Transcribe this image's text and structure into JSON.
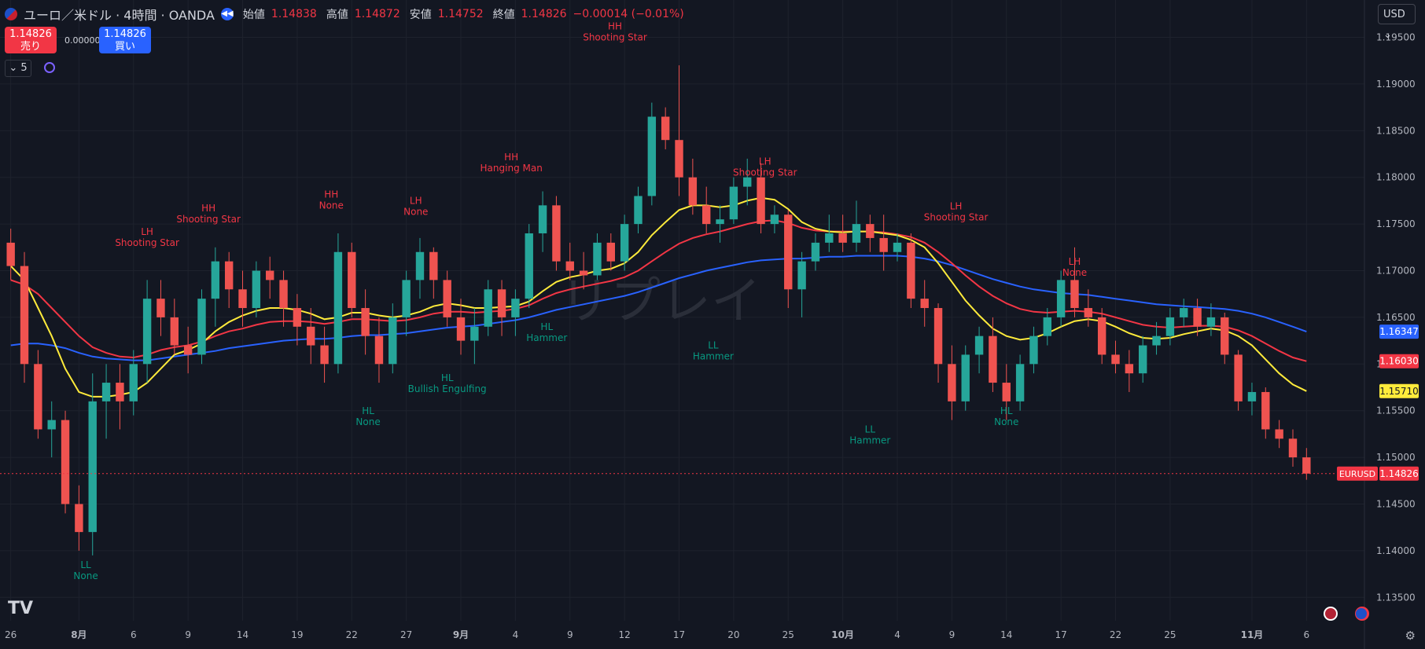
{
  "header": {
    "symbol_title": "ユーロ／米ドル · 4時間 · OANDA",
    "open_label": "始値",
    "open": "1.14838",
    "high_label": "高値",
    "high": "1.14872",
    "low_label": "安値",
    "low": "1.14752",
    "close_label": "終値",
    "close": "1.14826",
    "change": "−0.00014 (−0.01%)"
  },
  "trade": {
    "sell_price": "1.14826",
    "sell_label": "売り",
    "buy_price": "1.14826",
    "buy_label": "買い",
    "spread": "0.00000"
  },
  "indicators_toggle": "5",
  "currency_button": "USD",
  "watermark": "リプレイ",
  "colors": {
    "background": "#131722",
    "grid": "#1e222d",
    "up": "#26a69a",
    "down": "#ef5350",
    "ma_fast": "#ffeb3b",
    "ma_mid": "#f23645",
    "ma_slow": "#2962ff",
    "label_up": "#f23645",
    "label_down": "#089981"
  },
  "chart_data": {
    "type": "candlestick",
    "symbol": "EURUSD",
    "timeframe": "4時間",
    "ylim": [
      1.1325,
      1.199
    ],
    "yticks": [
      "1.19500",
      "1.19000",
      "1.18500",
      "1.18000",
      "1.17500",
      "1.17000",
      "1.16500",
      "1.16000",
      "1.15500",
      "1.15000",
      "1.14500",
      "1.14000",
      "1.13500"
    ],
    "xticks": [
      {
        "label": "26",
        "t": 0.5
      },
      {
        "label": "8月",
        "t": 5.5,
        "bold": true
      },
      {
        "label": "6",
        "t": 9.5
      },
      {
        "label": "9",
        "t": 13.5
      },
      {
        "label": "14",
        "t": 17.5
      },
      {
        "label": "19",
        "t": 21.5
      },
      {
        "label": "22",
        "t": 25.5
      },
      {
        "label": "27",
        "t": 29.5
      },
      {
        "label": "9月",
        "t": 33.5,
        "bold": true
      },
      {
        "label": "4",
        "t": 37.5
      },
      {
        "label": "9",
        "t": 41.5
      },
      {
        "label": "12",
        "t": 45.5
      },
      {
        "label": "17",
        "t": 49.5
      },
      {
        "label": "20",
        "t": 53.5
      },
      {
        "label": "25",
        "t": 57.5
      },
      {
        "label": "10月",
        "t": 61.5,
        "bold": true
      },
      {
        "label": "4",
        "t": 65.5
      },
      {
        "label": "9",
        "t": 69.5
      },
      {
        "label": "14",
        "t": 73.5
      },
      {
        "label": "17",
        "t": 77.5
      },
      {
        "label": "22",
        "t": 81.5
      },
      {
        "label": "25",
        "t": 85.5
      },
      {
        "label": "11月",
        "t": 91.5,
        "bold": true
      },
      {
        "label": "6",
        "t": 95.5
      }
    ],
    "candles": [
      [
        1.173,
        1.1745,
        1.169,
        1.1705
      ],
      [
        1.1705,
        1.172,
        1.158,
        1.16
      ],
      [
        1.16,
        1.1615,
        1.152,
        1.153
      ],
      [
        1.153,
        1.156,
        1.15,
        1.154
      ],
      [
        1.154,
        1.155,
        1.144,
        1.145
      ],
      [
        1.145,
        1.147,
        1.14,
        1.142
      ],
      [
        1.142,
        1.159,
        1.1395,
        1.156
      ],
      [
        1.156,
        1.16,
        1.152,
        1.158
      ],
      [
        1.158,
        1.16,
        1.153,
        1.156
      ],
      [
        1.156,
        1.1615,
        1.1545,
        1.16
      ],
      [
        1.16,
        1.169,
        1.158,
        1.167
      ],
      [
        1.167,
        1.169,
        1.163,
        1.165
      ],
      [
        1.165,
        1.167,
        1.161,
        1.162
      ],
      [
        1.162,
        1.164,
        1.159,
        1.161
      ],
      [
        1.161,
        1.168,
        1.16,
        1.167
      ],
      [
        1.167,
        1.1725,
        1.164,
        1.171
      ],
      [
        1.171,
        1.172,
        1.166,
        1.168
      ],
      [
        1.168,
        1.17,
        1.164,
        1.166
      ],
      [
        1.166,
        1.171,
        1.165,
        1.17
      ],
      [
        1.17,
        1.1715,
        1.167,
        1.169
      ],
      [
        1.169,
        1.17,
        1.164,
        1.166
      ],
      [
        1.166,
        1.1675,
        1.162,
        1.164
      ],
      [
        1.164,
        1.166,
        1.16,
        1.162
      ],
      [
        1.162,
        1.164,
        1.158,
        1.16
      ],
      [
        1.16,
        1.174,
        1.159,
        1.172
      ],
      [
        1.172,
        1.173,
        1.165,
        1.166
      ],
      [
        1.166,
        1.168,
        1.161,
        1.163
      ],
      [
        1.163,
        1.165,
        1.158,
        1.16
      ],
      [
        1.16,
        1.1665,
        1.159,
        1.165
      ],
      [
        1.165,
        1.17,
        1.163,
        1.169
      ],
      [
        1.169,
        1.1735,
        1.167,
        1.172
      ],
      [
        1.172,
        1.1725,
        1.167,
        1.169
      ],
      [
        1.169,
        1.17,
        1.164,
        1.165
      ],
      [
        1.165,
        1.167,
        1.161,
        1.1625
      ],
      [
        1.1625,
        1.166,
        1.16,
        1.164
      ],
      [
        1.164,
        1.169,
        1.163,
        1.168
      ],
      [
        1.168,
        1.169,
        1.163,
        1.165
      ],
      [
        1.165,
        1.168,
        1.163,
        1.167
      ],
      [
        1.167,
        1.175,
        1.166,
        1.174
      ],
      [
        1.174,
        1.1785,
        1.172,
        1.177
      ],
      [
        1.177,
        1.178,
        1.17,
        1.171
      ],
      [
        1.171,
        1.173,
        1.169,
        1.17
      ],
      [
        1.17,
        1.172,
        1.168,
        1.1695
      ],
      [
        1.1695,
        1.174,
        1.169,
        1.173
      ],
      [
        1.173,
        1.174,
        1.17,
        1.171
      ],
      [
        1.171,
        1.176,
        1.17,
        1.175
      ],
      [
        1.175,
        1.179,
        1.174,
        1.178
      ],
      [
        1.178,
        1.188,
        1.177,
        1.1865
      ],
      [
        1.1865,
        1.1875,
        1.183,
        1.184
      ],
      [
        1.184,
        1.192,
        1.178,
        1.18
      ],
      [
        1.18,
        1.182,
        1.176,
        1.177
      ],
      [
        1.177,
        1.179,
        1.174,
        1.175
      ],
      [
        1.175,
        1.177,
        1.173,
        1.1755
      ],
      [
        1.1755,
        1.18,
        1.175,
        1.179
      ],
      [
        1.179,
        1.182,
        1.177,
        1.18
      ],
      [
        1.18,
        1.1815,
        1.174,
        1.175
      ],
      [
        1.175,
        1.177,
        1.174,
        1.176
      ],
      [
        1.176,
        1.1765,
        1.166,
        1.168
      ],
      [
        1.168,
        1.172,
        1.165,
        1.171
      ],
      [
        1.171,
        1.174,
        1.17,
        1.173
      ],
      [
        1.173,
        1.176,
        1.172,
        1.174
      ],
      [
        1.174,
        1.176,
        1.172,
        1.173
      ],
      [
        1.173,
        1.1775,
        1.172,
        1.175
      ],
      [
        1.175,
        1.176,
        1.172,
        1.1735
      ],
      [
        1.1735,
        1.176,
        1.17,
        1.172
      ],
      [
        1.172,
        1.174,
        1.171,
        1.173
      ],
      [
        1.173,
        1.174,
        1.166,
        1.167
      ],
      [
        1.167,
        1.169,
        1.164,
        1.166
      ],
      [
        1.166,
        1.1665,
        1.158,
        1.16
      ],
      [
        1.16,
        1.162,
        1.154,
        1.156
      ],
      [
        1.156,
        1.162,
        1.155,
        1.161
      ],
      [
        1.161,
        1.164,
        1.159,
        1.163
      ],
      [
        1.163,
        1.165,
        1.157,
        1.158
      ],
      [
        1.158,
        1.16,
        1.154,
        1.156
      ],
      [
        1.156,
        1.161,
        1.155,
        1.16
      ],
      [
        1.16,
        1.164,
        1.159,
        1.163
      ],
      [
        1.163,
        1.166,
        1.162,
        1.165
      ],
      [
        1.165,
        1.17,
        1.164,
        1.169
      ],
      [
        1.169,
        1.1725,
        1.165,
        1.166
      ],
      [
        1.166,
        1.168,
        1.164,
        1.165
      ],
      [
        1.165,
        1.166,
        1.16,
        1.161
      ],
      [
        1.161,
        1.1625,
        1.159,
        1.16
      ],
      [
        1.16,
        1.1615,
        1.157,
        1.159
      ],
      [
        1.159,
        1.163,
        1.158,
        1.162
      ],
      [
        1.162,
        1.1645,
        1.161,
        1.163
      ],
      [
        1.163,
        1.166,
        1.162,
        1.165
      ],
      [
        1.165,
        1.167,
        1.164,
        1.166
      ],
      [
        1.166,
        1.167,
        1.163,
        1.164
      ],
      [
        1.164,
        1.1665,
        1.163,
        1.165
      ],
      [
        1.165,
        1.1655,
        1.16,
        1.161
      ],
      [
        1.161,
        1.1615,
        1.155,
        1.156
      ],
      [
        1.156,
        1.158,
        1.1545,
        1.157
      ],
      [
        1.157,
        1.1575,
        1.152,
        1.153
      ],
      [
        1.153,
        1.154,
        1.151,
        1.152
      ],
      [
        1.152,
        1.153,
        1.149,
        1.15
      ],
      [
        1.15,
        1.151,
        1.1476,
        1.14826
      ]
    ],
    "ma_fast_values": [
      1.1705,
      1.169,
      1.166,
      1.163,
      1.1595,
      1.157,
      1.1565,
      1.1565,
      1.1567,
      1.157,
      1.158,
      1.1595,
      1.161,
      1.1615,
      1.1622,
      1.1635,
      1.1645,
      1.1652,
      1.1657,
      1.166,
      1.166,
      1.1658,
      1.1654,
      1.1648,
      1.165,
      1.1655,
      1.1655,
      1.1652,
      1.165,
      1.1652,
      1.1656,
      1.1662,
      1.1665,
      1.1663,
      1.166,
      1.166,
      1.1661,
      1.1662,
      1.1667,
      1.1678,
      1.1688,
      1.1693,
      1.1696,
      1.17,
      1.1702,
      1.1708,
      1.172,
      1.1738,
      1.1752,
      1.1765,
      1.177,
      1.177,
      1.1768,
      1.177,
      1.1775,
      1.1778,
      1.1776,
      1.1766,
      1.1752,
      1.1745,
      1.1742,
      1.1741,
      1.1742,
      1.1742,
      1.174,
      1.1738,
      1.1733,
      1.1725,
      1.1708,
      1.1688,
      1.1668,
      1.1652,
      1.1638,
      1.163,
      1.1626,
      1.1628,
      1.1633,
      1.164,
      1.1646,
      1.1648,
      1.1646,
      1.164,
      1.1633,
      1.1628,
      1.1627,
      1.1628,
      1.1632,
      1.1635,
      1.1638,
      1.1636,
      1.163,
      1.162,
      1.1605,
      1.159,
      1.1578,
      1.1571
    ],
    "ma_mid_values": [
      1.169,
      1.1685,
      1.1675,
      1.166,
      1.1645,
      1.163,
      1.1618,
      1.1612,
      1.1608,
      1.1607,
      1.161,
      1.1615,
      1.1618,
      1.162,
      1.1624,
      1.163,
      1.1635,
      1.1638,
      1.1642,
      1.1645,
      1.1646,
      1.1646,
      1.1645,
      1.1643,
      1.1645,
      1.1648,
      1.1648,
      1.1647,
      1.1646,
      1.1647,
      1.165,
      1.1654,
      1.1656,
      1.1656,
      1.1655,
      1.1656,
      1.1657,
      1.1659,
      1.1663,
      1.167,
      1.1676,
      1.168,
      1.1683,
      1.1686,
      1.1689,
      1.1693,
      1.17,
      1.171,
      1.172,
      1.1729,
      1.1735,
      1.1739,
      1.1742,
      1.1746,
      1.175,
      1.1753,
      1.1754,
      1.1751,
      1.1746,
      1.1743,
      1.1742,
      1.1742,
      1.1742,
      1.1742,
      1.1741,
      1.1739,
      1.1736,
      1.173,
      1.172,
      1.1708,
      1.1695,
      1.1683,
      1.1673,
      1.1665,
      1.1659,
      1.1656,
      1.1655,
      1.1656,
      1.1657,
      1.1656,
      1.1654,
      1.165,
      1.1646,
      1.1642,
      1.164,
      1.1639,
      1.164,
      1.1641,
      1.1641,
      1.164,
      1.1636,
      1.163,
      1.1622,
      1.1614,
      1.1607,
      1.1603
    ],
    "ma_slow_values": [
      1.162,
      1.1622,
      1.1622,
      1.162,
      1.1617,
      1.1612,
      1.1608,
      1.1606,
      1.1605,
      1.1604,
      1.1604,
      1.1606,
      1.1608,
      1.161,
      1.1612,
      1.1614,
      1.1617,
      1.1619,
      1.1621,
      1.1623,
      1.1625,
      1.1626,
      1.1627,
      1.1627,
      1.1628,
      1.163,
      1.1631,
      1.1631,
      1.1632,
      1.1633,
      1.1635,
      1.1637,
      1.1639,
      1.164,
      1.1641,
      1.1643,
      1.1645,
      1.1647,
      1.165,
      1.1654,
      1.1658,
      1.1661,
      1.1664,
      1.1667,
      1.167,
      1.1673,
      1.1677,
      1.1682,
      1.1687,
      1.1692,
      1.1696,
      1.17,
      1.1703,
      1.1706,
      1.1709,
      1.1711,
      1.1712,
      1.1713,
      1.1713,
      1.1714,
      1.1715,
      1.1715,
      1.1716,
      1.1716,
      1.1716,
      1.1716,
      1.1715,
      1.1713,
      1.171,
      1.1706,
      1.1701,
      1.1696,
      1.1691,
      1.1687,
      1.1683,
      1.168,
      1.1678,
      1.1676,
      1.1675,
      1.1674,
      1.1672,
      1.167,
      1.1668,
      1.1666,
      1.1664,
      1.1663,
      1.1662,
      1.1661,
      1.166,
      1.1659,
      1.1657,
      1.1654,
      1.165,
      1.1645,
      1.164,
      1.16347
    ],
    "last_labels": [
      {
        "value": 1.16347,
        "text": "1.16347",
        "color": "#2962ff",
        "textColor": "#ffffff"
      },
      {
        "value": 1.1603,
        "text": "1.16030",
        "color": "#f23645",
        "textColor": "#ffffff"
      },
      {
        "value": 1.1571,
        "text": "1.15710",
        "color": "#ffeb3b",
        "textColor": "#131722"
      },
      {
        "value": 1.14826,
        "text": "1.14826",
        "color": "#f23645",
        "textColor": "#ffffff",
        "tag": "EURUSD"
      }
    ],
    "annotations": [
      {
        "t": 6,
        "y": 1.1395,
        "lines": [
          "LL",
          "None"
        ],
        "kind": "low"
      },
      {
        "t": 10.5,
        "y": 1.1725,
        "lines": [
          "LH",
          "Shooting Star"
        ],
        "kind": "high"
      },
      {
        "t": 15,
        "y": 1.175,
        "lines": [
          "HH",
          "Shooting Star"
        ],
        "kind": "high"
      },
      {
        "t": 24,
        "y": 1.1765,
        "lines": [
          "HH",
          "None"
        ],
        "kind": "high"
      },
      {
        "t": 26.7,
        "y": 1.156,
        "lines": [
          "HL",
          "None"
        ],
        "kind": "low"
      },
      {
        "t": 30.2,
        "y": 1.1758,
        "lines": [
          "LH",
          "None"
        ],
        "kind": "high"
      },
      {
        "t": 32.5,
        "y": 1.1595,
        "lines": [
          "HL",
          "Bullish Engulfing"
        ],
        "kind": "low"
      },
      {
        "t": 37.2,
        "y": 1.1805,
        "lines": [
          "HH",
          "Hanging Man"
        ],
        "kind": "high"
      },
      {
        "t": 39.8,
        "y": 1.165,
        "lines": [
          "HL",
          "Hammer"
        ],
        "kind": "low"
      },
      {
        "t": 44.8,
        "y": 1.1945,
        "lines": [
          "HH",
          "Shooting Star"
        ],
        "kind": "high"
      },
      {
        "t": 52,
        "y": 1.163,
        "lines": [
          "LL",
          "Hammer"
        ],
        "kind": "low"
      },
      {
        "t": 55.8,
        "y": 1.18,
        "lines": [
          "LH",
          "Shooting Star"
        ],
        "kind": "high"
      },
      {
        "t": 63.5,
        "y": 1.154,
        "lines": [
          "LL",
          "Hammer"
        ],
        "kind": "low"
      },
      {
        "t": 69.8,
        "y": 1.1752,
        "lines": [
          "LH",
          "Shooting Star"
        ],
        "kind": "high"
      },
      {
        "t": 73.5,
        "y": 1.156,
        "lines": [
          "HL",
          "None"
        ],
        "kind": "low"
      },
      {
        "t": 78.5,
        "y": 1.1693,
        "lines": [
          "LH",
          "None"
        ],
        "kind": "high"
      }
    ]
  }
}
